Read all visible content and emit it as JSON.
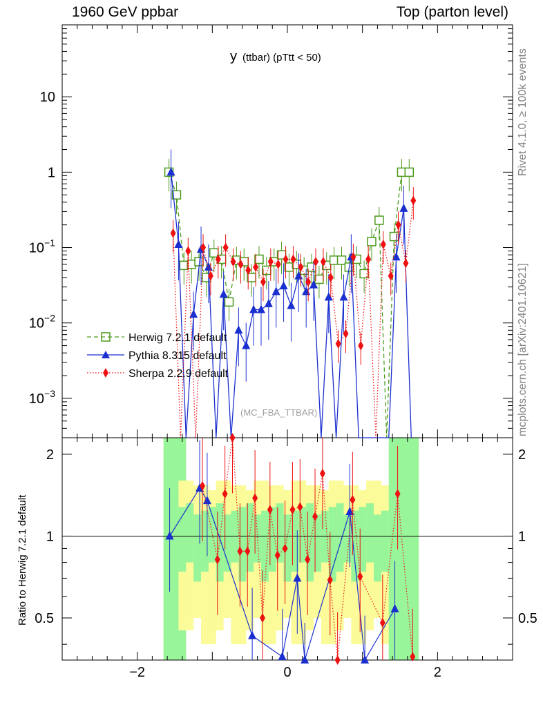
{
  "header": {
    "left": "1960 GeV ppbar",
    "right": "Top (parton level)"
  },
  "side_labels": {
    "top": "Rivet 4.1.0, ≥ 100k events",
    "bottom": "mcplots.cern.ch [arXiv:2401.10621]"
  },
  "plot": {
    "title_main": "y",
    "title_sub": "(ttbar)  (pTtt < 50)",
    "watermark": "(MC_FBA_TTBAR)",
    "ratio_ylabel": "Ratio to Herwig 7.2.1 default"
  },
  "colors": {
    "herwig": "#4a9a1a",
    "pythia": "#1a2fd0",
    "sherpa": "#ee1111",
    "band_inner": "#99f599",
    "band_outer": "#fbfb99"
  },
  "chart_data": [
    {
      "type": "line",
      "title": "y (ttbar) (pTtt < 50)",
      "xlabel": "",
      "ylabel": "",
      "xlim": [
        -3,
        3
      ],
      "ylim": [
        0.0003,
        90
      ],
      "yscale": "log",
      "xticks": [
        -2,
        0,
        2
      ],
      "xtick_labels": [
        "−2",
        "0",
        "2"
      ],
      "yticks": [
        0.001,
        0.01,
        0.1,
        1,
        10
      ],
      "ytick_labels": [
        "10^-3",
        "10^-2",
        "10^-1",
        "1",
        "10"
      ],
      "legend_position": "left",
      "series": [
        {
          "name": "Herwig 7.2.1 default",
          "style": "dashed",
          "marker": "open-square",
          "x": [
            -1.55,
            -1.45,
            -1.35,
            -1.25,
            -1.15,
            -1.05,
            -0.95,
            -0.85,
            -0.75,
            -0.65,
            -0.55,
            -0.45,
            -0.35,
            -0.25,
            -0.15,
            -0.05,
            0.05,
            0.15,
            0.25,
            0.35,
            0.45,
            0.55,
            0.65,
            0.75,
            0.85,
            0.95,
            1.05,
            1.15,
            1.25,
            1.35,
            1.45,
            1.55,
            1.65
          ],
          "y": [
            1.0,
            0.5,
            0.058,
            0.06,
            0.065,
            0.04,
            0.085,
            0.07,
            0.019,
            0.068,
            0.065,
            0.04,
            0.07,
            0.05,
            0.065,
            0.08,
            0.055,
            0.06,
            0.05,
            0.055,
            0.038,
            0.058,
            0.068,
            0.068,
            0.055,
            0.07,
            0.045,
            0.12,
            0.23,
            0.0003,
            0.14,
            1.0,
            1.0
          ]
        },
        {
          "name": "Pythia 8.315 default",
          "style": "solid",
          "marker": "filled-triangle",
          "x": [
            -1.55,
            -1.45,
            -1.35,
            -1.25,
            -1.15,
            -1.05,
            -0.95,
            -0.85,
            -0.75,
            -0.65,
            -0.55,
            -0.45,
            -0.35,
            -0.25,
            -0.15,
            -0.05,
            0.05,
            0.15,
            0.25,
            0.35,
            0.45,
            0.55,
            0.65,
            0.75,
            0.85,
            0.95,
            1.05,
            1.15,
            1.25,
            1.35,
            1.45,
            1.55,
            1.65
          ],
          "y": [
            1.0,
            0.11,
            0.0003,
            0.013,
            0.095,
            0.055,
            0.0003,
            0.024,
            0.0003,
            0.008,
            0.005,
            0.015,
            0.015,
            0.018,
            0.026,
            0.031,
            0.017,
            0.042,
            0.026,
            0.032,
            0.0003,
            0.022,
            0.0003,
            0.022,
            0.075,
            0.0003,
            0.0003,
            0.0003,
            0.0003,
            0.0003,
            0.075,
            0.33,
            0.0003
          ]
        },
        {
          "name": "Sherpa 2.2.9 default",
          "style": "dotted",
          "marker": "filled-diamond",
          "x": [
            -1.55,
            -1.45,
            -1.35,
            -1.25,
            -1.15,
            -1.05,
            -0.95,
            -0.85,
            -0.75,
            -0.65,
            -0.55,
            -0.45,
            -0.35,
            -0.25,
            -0.15,
            -0.05,
            0.05,
            0.15,
            0.25,
            0.35,
            0.45,
            0.55,
            0.65,
            0.75,
            0.85,
            0.95,
            1.05,
            1.15,
            1.25,
            1.35,
            1.45,
            1.55,
            1.65
          ],
          "y": [
            0.155,
            0.0003,
            0.09,
            0.0003,
            0.1,
            0.042,
            0.07,
            0.1,
            0.065,
            0.06,
            0.05,
            0.055,
            0.035,
            0.065,
            0.06,
            0.07,
            0.07,
            0.055,
            0.035,
            0.065,
            0.065,
            0.04,
            0.0053,
            0.0072,
            0.075,
            0.005,
            0.07,
            0.0003,
            0.11,
            0.042,
            0.2,
            0.062,
            0.42
          ]
        }
      ]
    },
    {
      "type": "line",
      "title": "",
      "xlabel": "",
      "ylabel": "Ratio to Herwig 7.2.1 default",
      "xlim": [
        -3,
        3
      ],
      "ylim": [
        0.35,
        2.3
      ],
      "yscale": "log",
      "xticks": [
        -2,
        0,
        2
      ],
      "xtick_labels": [
        "−2",
        "0",
        "2"
      ],
      "yticks": [
        0.5,
        1,
        2
      ],
      "ytick_labels": [
        "0.5",
        "1",
        "2"
      ],
      "reference_line": 1,
      "series": [
        {
          "name": "Pythia 8.315 default",
          "x": [
            -1.55,
            -1.15,
            -1.05,
            -0.45,
            -0.05,
            0.15,
            0.25,
            0.85,
            1.05,
            1.45
          ],
          "y": [
            1.0,
            1.5,
            1.35,
            0.43,
            0.36,
            0.7,
            0.32,
            1.23,
            0.34,
            0.54
          ]
        },
        {
          "name": "Sherpa 2.2.9 default",
          "x": [
            -1.15,
            -0.95,
            -0.85,
            -0.75,
            -0.65,
            -0.55,
            -0.45,
            -0.35,
            -0.25,
            -0.15,
            -0.05,
            0.05,
            0.15,
            0.25,
            0.35,
            0.45,
            0.55,
            0.65,
            0.85,
            0.95,
            1.25,
            1.45,
            1.65
          ],
          "y": [
            1.53,
            0.82,
            1.43,
            2.3,
            0.88,
            0.88,
            1.38,
            0.5,
            1.25,
            0.85,
            0.9,
            1.25,
            1.28,
            0.82,
            1.18,
            1.7,
            0.69,
            0.35,
            1.36,
            0.71,
            0.48,
            1.43,
            0.36
          ]
        }
      ]
    }
  ]
}
